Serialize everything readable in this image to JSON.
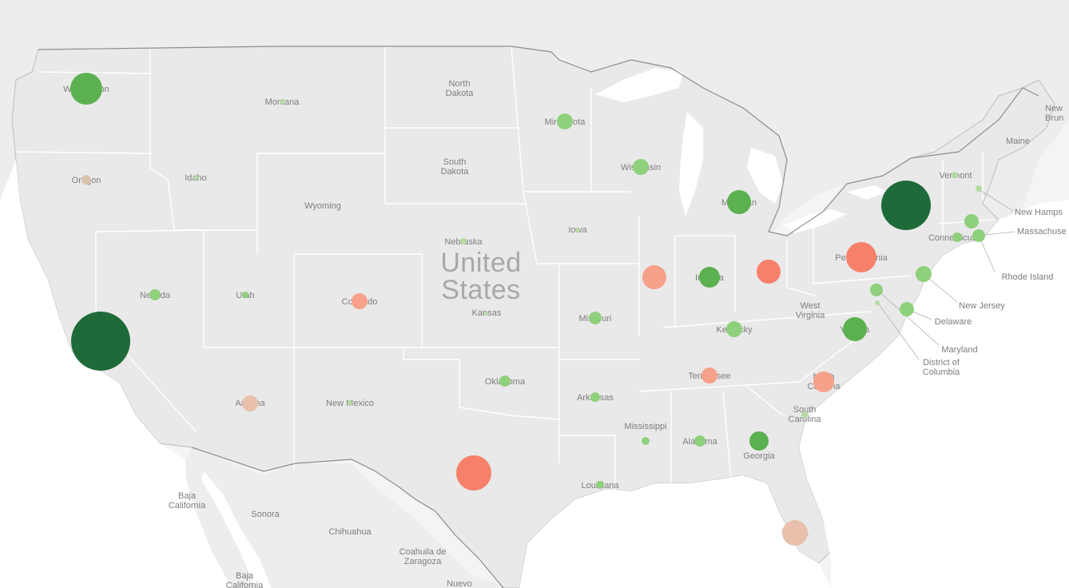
{
  "map": {
    "country_label": [
      "United",
      "States"
    ],
    "colors": {
      "land": "#e9e9e9",
      "neighbor_land": "#eeeeee",
      "water": "#ffffff",
      "state_border": "#ffffff",
      "country_border": "#8f8f8f",
      "dark_green": "#1e6a39",
      "mid_green": "#5bb04f",
      "light_green": "#8fd07c",
      "pale_green": "#b5dba2",
      "peach": "#e0bfa7",
      "salmon": "#f7a08a",
      "red_orange": "#f7806a"
    },
    "region_labels": {
      "washington": "Washington",
      "oregon": "Oregon",
      "idaho": "Idaho",
      "montana": "Montana",
      "wyoming": "Wyoming",
      "nevada": "Nevada",
      "utah": "Utah",
      "colorado": "Colorado",
      "arizona": "Arizona",
      "new_mexico": "New Mexico",
      "north_dakota": "North Dakota",
      "south_dakota": "South Dakota",
      "nebraska": "Nebraska",
      "kansas": "Kansas",
      "oklahoma": "Oklahoma",
      "texas": "",
      "minnesota": "Minnesota",
      "iowa": "Iowa",
      "missouri": "Missouri",
      "arkansas": "Arkansas",
      "louisiana": "Louisiana",
      "wisconsin": "Wisconsin",
      "illinois": "Illinois",
      "michigan": "Michigan",
      "indiana": "Indiana",
      "ohio": "",
      "kentucky": "Kentucky",
      "tennessee": "Tennessee",
      "mississippi": "Mississippi",
      "alabama": "Alabama",
      "georgia": "Georgia",
      "florida": "Florida",
      "south_carolina": "South Carolina",
      "north_carolina": "North Carolina",
      "virginia": "Virginia",
      "west_virginia": "West Virginia",
      "pennsylvania": "Pennsylvania",
      "new_york": "",
      "vermont": "Vermont",
      "maine": "Maine",
      "new_hampshire": "New Hamps",
      "massachusetts": "Massachuse",
      "rhode_island": "Rhode Island",
      "connecticut": "Connecticut",
      "new_jersey": "New Jersey",
      "delaware": "Delaware",
      "maryland": "Maryland",
      "district_of_columbia": "District of Columbia",
      "baja_california": "Baja California",
      "baja_california_sur": "Baja California",
      "sonora": "Sonora",
      "chihuahua": "Chihuahua",
      "coahuila": "Coahuila de Zaragoza",
      "nuevo_leon": "Nuevo",
      "new_brunswick": "New Brun"
    }
  }
}
